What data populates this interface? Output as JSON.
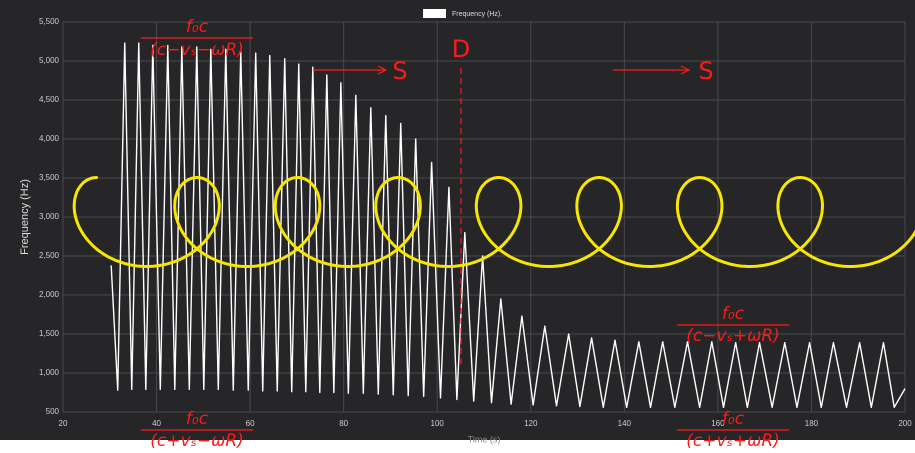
{
  "chart_data": {
    "type": "line",
    "legend_position": "top",
    "grid": true,
    "x_label": "Time (s)",
    "y_label": "Frequency (Hz)",
    "xlim": [
      20,
      200
    ],
    "xticks": [
      20,
      40,
      60,
      80,
      100,
      120,
      140,
      160,
      180,
      200
    ],
    "ylim": [
      500,
      5500
    ],
    "yticks": [
      500,
      {
        "value": 1000,
        "label": "1,000"
      },
      {
        "value": 1500,
        "label": "1,500"
      },
      {
        "value": 2000,
        "label": "2,000"
      },
      {
        "value": 2500,
        "label": "2,500"
      },
      {
        "value": 3000,
        "label": "3,000"
      },
      {
        "value": 3500,
        "label": "3,500"
      },
      {
        "value": 4000,
        "label": "4,000"
      },
      {
        "value": 4500,
        "label": "4,500"
      },
      {
        "value": 5000,
        "label": "5,000"
      },
      {
        "value": 5500,
        "label": "5,500"
      }
    ],
    "x": [
      30.3,
      31.7,
      33.2,
      34.7,
      36.2,
      37.7,
      39.2,
      40.8,
      42.4,
      43.9,
      45.4,
      47.0,
      48.6,
      50.1,
      51.6,
      53.2,
      54.8,
      56.4,
      58.0,
      59.6,
      61.2,
      62.7,
      64.2,
      65.8,
      67.4,
      68.9,
      70.4,
      71.9,
      73.4,
      74.9,
      76.4,
      77.9,
      79.4,
      81.0,
      82.6,
      84.2,
      85.8,
      87.4,
      89.0,
      90.6,
      92.2,
      93.8,
      95.4,
      97.1,
      98.8,
      100.7,
      102.5,
      104.2,
      105.9,
      107.8,
      109.7,
      111.6,
      113.6,
      115.8,
      118.1,
      120.5,
      123.0,
      125.5,
      128.1,
      130.5,
      133.0,
      135.5,
      138.0,
      140.5,
      143.1,
      145.6,
      148.2,
      150.8,
      153.5,
      156.1,
      158.7,
      161.2,
      163.8,
      166.3,
      168.9,
      171.6,
      174.3,
      176.9,
      179.6,
      182.1,
      184.7,
      187.5,
      190.3,
      192.8,
      195.4,
      197.7,
      200
    ],
    "series": [
      {
        "name": "Frequency (Hz).",
        "color": "#ffffff",
        "values": [
          2380,
          780,
          5230,
          790,
          5230,
          790,
          5200,
          790,
          5200,
          790,
          5180,
          790,
          5180,
          790,
          5150,
          790,
          5150,
          780,
          5120,
          780,
          5100,
          770,
          5070,
          770,
          5030,
          760,
          4960,
          760,
          4920,
          750,
          4820,
          750,
          4720,
          740,
          4560,
          740,
          4400,
          730,
          4300,
          720,
          4200,
          710,
          4000,
          700,
          3700,
          680,
          3380,
          660,
          2800,
          640,
          2500,
          620,
          1950,
          600,
          1730,
          590,
          1600,
          580,
          1500,
          570,
          1450,
          560,
          1420,
          560,
          1400,
          560,
          1400,
          560,
          1400,
          560,
          1400,
          560,
          1390,
          560,
          1390,
          560,
          1390,
          560,
          1390,
          560,
          1390,
          560,
          1390,
          560,
          1390,
          560,
          800
        ]
      }
    ],
    "formulas": [
      {
        "numerator": "f₀c",
        "denominator": "(c−vₛ−ωR)"
      },
      {
        "numerator": "f₀c",
        "denominator": "(c−vₛ+ωR)"
      },
      {
        "numerator": "f₀c",
        "denominator": "(c+vₛ−ωR)"
      },
      {
        "numerator": "f₀c",
        "denominator": "(c+vₛ+ωR)"
      }
    ],
    "labels": [
      "S",
      "D",
      "S"
    ]
  }
}
